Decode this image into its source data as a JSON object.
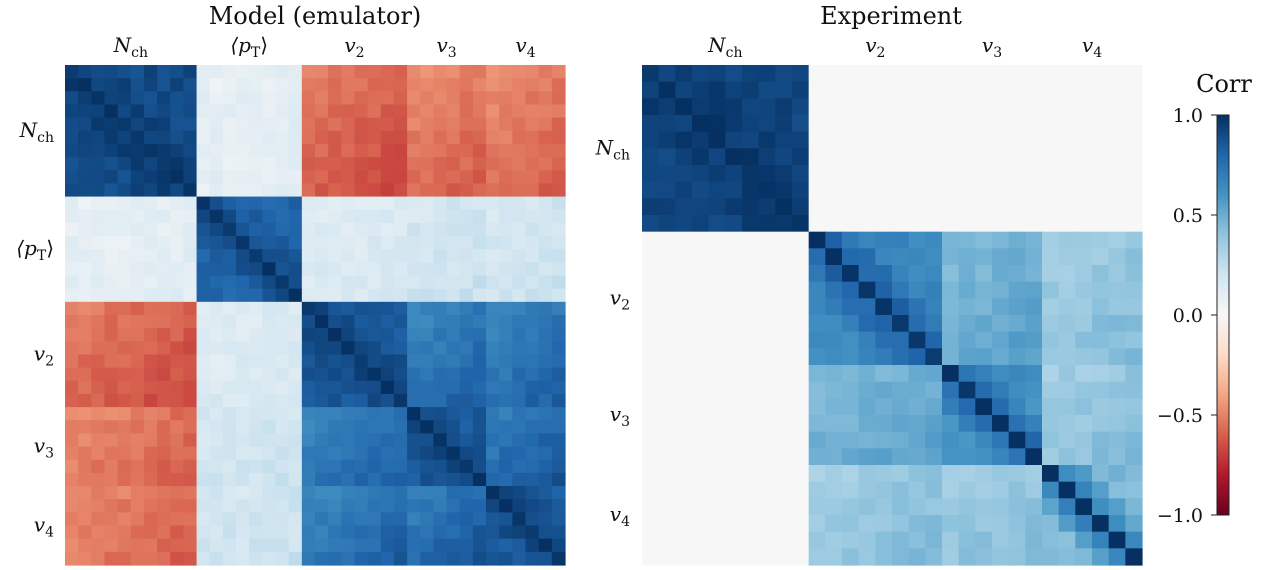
{
  "chart_data": [
    {
      "type": "heatmap",
      "title": "Model (emulator)",
      "blocks": [
        {
          "label": "N",
          "sub": "ch",
          "size": 10
        },
        {
          "label": "⟨p",
          "sub": "T",
          "tail": "⟩",
          "size": 8
        },
        {
          "label": "v",
          "sub": "2",
          "size": 8
        },
        {
          "label": "v",
          "sub": "3",
          "size": 6
        },
        {
          "label": "v",
          "sub": "4",
          "size": 6
        }
      ],
      "block_correlation": [
        [
          0.9,
          0.1,
          -0.6,
          -0.55,
          -0.55
        ],
        [
          0.1,
          0.8,
          0.15,
          0.2,
          0.2
        ],
        [
          -0.6,
          0.15,
          0.85,
          0.75,
          0.75
        ],
        [
          -0.55,
          0.2,
          0.75,
          0.85,
          0.8
        ],
        [
          -0.55,
          0.2,
          0.75,
          0.8,
          0.85
        ]
      ],
      "diagonal": 1.0
    },
    {
      "type": "heatmap",
      "title": "Experiment",
      "blocks": [
        {
          "label": "N",
          "sub": "ch",
          "size": 10
        },
        {
          "label": "v",
          "sub": "2",
          "size": 8
        },
        {
          "label": "v",
          "sub": "3",
          "size": 6
        },
        {
          "label": "v",
          "sub": "4",
          "size": 6
        }
      ],
      "block_correlation": [
        [
          0.92,
          0.0,
          0.0,
          0.0
        ],
        [
          0.0,
          0.65,
          0.5,
          0.4
        ],
        [
          0.0,
          0.5,
          0.62,
          0.4
        ],
        [
          0.0,
          0.4,
          0.4,
          0.45
        ]
      ],
      "diagonal": 1.0
    }
  ],
  "colorbar": {
    "label": "Corr",
    "range": [
      -1.0,
      1.0
    ],
    "ticks": [
      "1.0",
      "0.5",
      "0.0",
      "−0.5",
      "−1.0"
    ],
    "colormap": "RdBu"
  }
}
